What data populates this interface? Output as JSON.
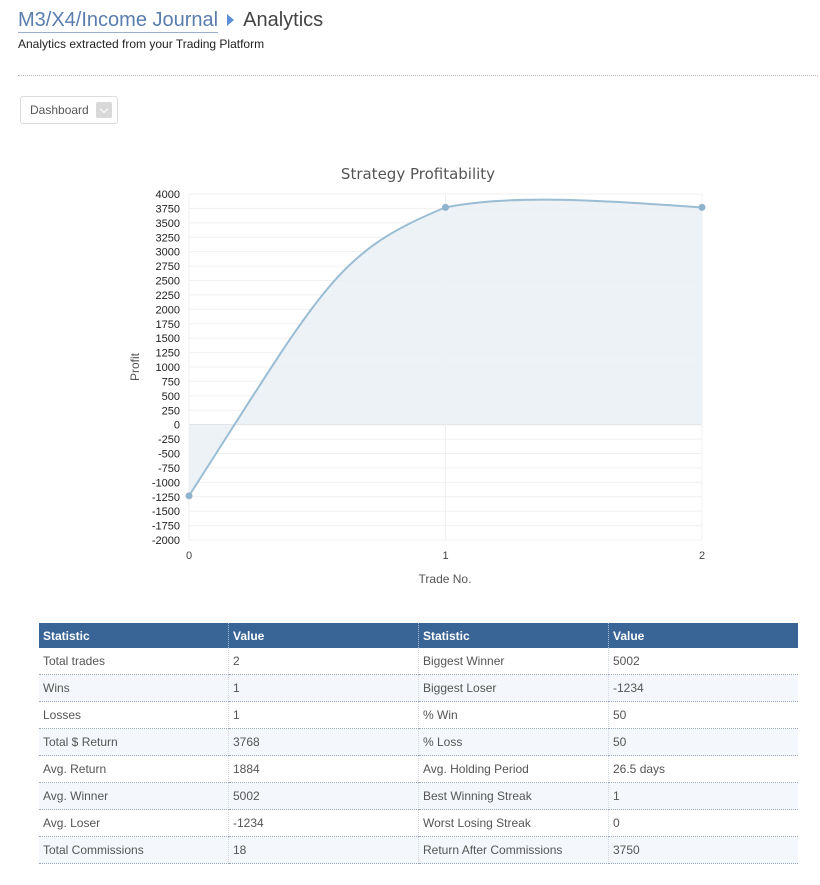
{
  "header": {
    "breadcrumb_link": "M3/X4/Income Journal",
    "current_page": "Analytics",
    "subtitle": "Analytics extracted from your Trading Platform"
  },
  "dashboard_select": {
    "label": "Dashboard"
  },
  "chart_data": {
    "type": "area",
    "title": "Strategy Profitability",
    "xlabel": "Trade No.",
    "ylabel": "Profit",
    "x": [
      0,
      1,
      2
    ],
    "y": [
      -1234,
      3768,
      3768
    ],
    "x_ticks": [
      0,
      1,
      2
    ],
    "xlim": [
      0,
      2
    ],
    "ylim": [
      -2000,
      4000
    ],
    "y_tick_step": 250,
    "grid": true,
    "legend": "none",
    "line_color": "#9bbdd4",
    "fill_color": "#e9f0f5",
    "point_color": "#8fb3cc"
  },
  "stats_table": {
    "headers": [
      "Statistic",
      "Value",
      "Statistic",
      "Value"
    ],
    "rows": [
      [
        "Total trades",
        "2",
        "Biggest Winner",
        "5002"
      ],
      [
        "Wins",
        "1",
        "Biggest Loser",
        "-1234"
      ],
      [
        "Losses",
        "1",
        "% Win",
        "50"
      ],
      [
        "Total $ Return",
        "3768",
        "% Loss",
        "50"
      ],
      [
        "Avg. Return",
        "1884",
        "Avg. Holding Period",
        "26.5 days"
      ],
      [
        "Avg. Winner",
        "5002",
        "Best Winning Streak",
        "1"
      ],
      [
        "Avg. Loser",
        "-1234",
        "Worst Losing Streak",
        "0"
      ],
      [
        "Total Commissions",
        "18",
        "Return After Commissions",
        "3750"
      ]
    ]
  },
  "colors": {
    "header_bg": "#396496",
    "breadcrumb_link": "#5a7dae",
    "breadcrumb_arrow": "#5c8fd6"
  }
}
